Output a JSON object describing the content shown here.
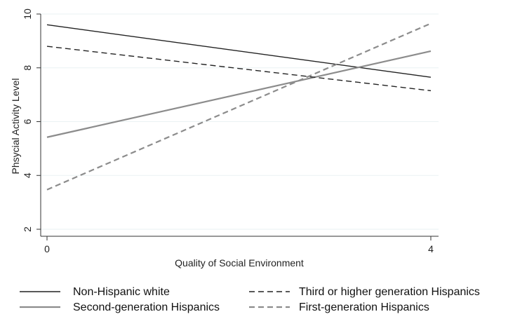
{
  "chart_data": {
    "type": "line",
    "title": "",
    "xlabel": "Quality of Social Environment",
    "ylabel": "Phsycial Activity Level",
    "xlim": [
      0,
      4
    ],
    "ylim": [
      2,
      10
    ],
    "xticks": [
      0,
      4
    ],
    "yticks": [
      2,
      4,
      6,
      8,
      10
    ],
    "grid": true,
    "legend_position": "bottom",
    "series": [
      {
        "name": "Non-Hispanic white",
        "x": [
          0,
          4
        ],
        "y": [
          9.6,
          7.65
        ],
        "color": "#222222",
        "dash": "solid"
      },
      {
        "name": "Second-generation Hispanics",
        "x": [
          0,
          4
        ],
        "y": [
          5.42,
          8.62
        ],
        "color": "#8c8c8c",
        "dash": "solid"
      },
      {
        "name": "Third or higher generation Hispanics",
        "x": [
          0,
          4
        ],
        "y": [
          8.8,
          7.15
        ],
        "color": "#222222",
        "dash": "dashed"
      },
      {
        "name": "First-generation Hispanics",
        "x": [
          0,
          4
        ],
        "y": [
          3.47,
          9.65
        ],
        "color": "#8c8c8c",
        "dash": "dashed"
      }
    ]
  }
}
